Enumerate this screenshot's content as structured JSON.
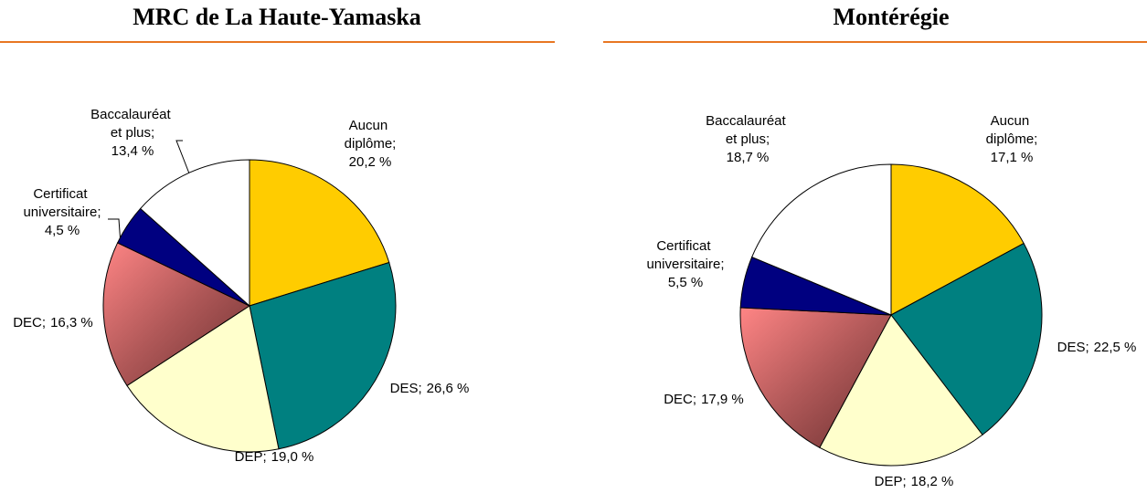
{
  "chart_data": [
    {
      "type": "pie",
      "title": "MRC de La Haute-Yamaska",
      "categories": [
        "Aucun diplôme;",
        "DES;",
        "DEP;",
        "DEC;",
        "Certificat universitaire;",
        "Baccalauréat et plus;"
      ],
      "values": [
        20.2,
        26.6,
        19.0,
        16.3,
        4.5,
        13.4
      ],
      "value_labels": [
        "20,2 %",
        "26,6 %",
        "19,0 %",
        "16,3 %",
        "4,5 %",
        "13,4 %"
      ],
      "colors": [
        "#FFCC00",
        "#008080",
        "#FFFFCC",
        "gradient",
        "#000080",
        "#FFFFFF"
      ]
    },
    {
      "type": "pie",
      "title": "Montérégie",
      "categories": [
        "Aucun diplôme;",
        "DES;",
        "DEP;",
        "DEC;",
        "Certificat universitaire;",
        "Baccalauréat et plus;"
      ],
      "values": [
        17.1,
        22.5,
        18.2,
        17.9,
        5.5,
        18.7
      ],
      "value_labels": [
        "17,1 %",
        "22,5 %",
        "18,2 %",
        "17,9 %",
        "5,5 %",
        "18,7 %"
      ],
      "colors": [
        "#FFCC00",
        "#008080",
        "#FFFFCC",
        "gradient",
        "#000080",
        "#FFFFFF"
      ]
    }
  ]
}
